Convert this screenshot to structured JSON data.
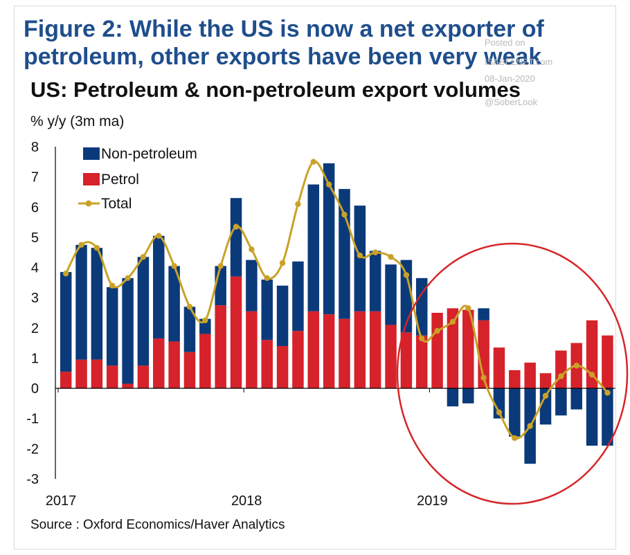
{
  "figure_title": "Figure 2: While the US is now a net exporter of petroleum, other exports have been very weak",
  "watermark": {
    "line1": "Posted on",
    "line2": "ISABELNET.com",
    "line3": "08-Jan-2020",
    "line4": "@SoberLook"
  },
  "source": "Source : Oxford Economics/Haver Analytics",
  "colors": {
    "title": "#1f4e8c",
    "non_petroleum": "#0b3a7a",
    "petrol": "#d6222a",
    "total": "#c9a227",
    "circle": "#d62528"
  },
  "chart_data": {
    "type": "bar",
    "stacked": true,
    "title": "US: Petroleum & non-petroleum export volumes",
    "ylabel": "% y/y (3m ma)",
    "ylim": [
      -3,
      8
    ],
    "yticks": [
      "8",
      "7",
      "6",
      "5",
      "4",
      "3",
      "2",
      "1",
      "0",
      "-1",
      "-2",
      "-3"
    ],
    "x_labels": [
      "2017",
      "2018",
      "2019"
    ],
    "x_label_months": [
      0,
      12,
      24
    ],
    "legend_position": "top-left",
    "annotation": "red circle around 2019 data",
    "months": [
      "Jan-2017",
      "Feb-2017",
      "Mar-2017",
      "Apr-2017",
      "May-2017",
      "Jun-2017",
      "Jul-2017",
      "Aug-2017",
      "Sep-2017",
      "Oct-2017",
      "Nov-2017",
      "Dec-2017",
      "Jan-2018",
      "Feb-2018",
      "Mar-2018",
      "Apr-2018",
      "May-2018",
      "Jun-2018",
      "Jul-2018",
      "Aug-2018",
      "Sep-2018",
      "Oct-2018",
      "Nov-2018",
      "Dec-2018",
      "Jan-2019",
      "Feb-2019",
      "Mar-2019",
      "Apr-2019",
      "May-2019",
      "Jun-2019",
      "Jul-2019",
      "Aug-2019",
      "Sep-2019",
      "Oct-2019",
      "Nov-2019",
      "Dec-2019"
    ],
    "series": [
      {
        "name": "Non-petroleum",
        "kind": "bar",
        "values": [
          3.3,
          3.8,
          3.7,
          2.6,
          3.5,
          3.6,
          3.4,
          2.5,
          1.5,
          0.5,
          1.3,
          2.6,
          1.7,
          2.0,
          2.0,
          2.3,
          4.2,
          5.0,
          4.3,
          3.5,
          2.0,
          2.0,
          2.4,
          1.9,
          0.0,
          -0.6,
          -0.5,
          0.4,
          -1.0,
          -1.6,
          -2.5,
          -1.2,
          -0.9,
          -0.7,
          -1.9,
          -1.9
        ]
      },
      {
        "name": "Petrol",
        "kind": "bar",
        "values": [
          0.55,
          0.95,
          0.95,
          0.75,
          0.15,
          0.75,
          1.65,
          1.55,
          1.2,
          1.8,
          2.75,
          3.7,
          2.55,
          1.6,
          1.4,
          1.9,
          2.55,
          2.45,
          2.3,
          2.55,
          2.55,
          2.1,
          1.85,
          1.75,
          2.5,
          2.65,
          2.6,
          2.25,
          1.35,
          0.6,
          0.85,
          0.5,
          1.25,
          1.5,
          2.25,
          1.75
        ]
      },
      {
        "name": "Total",
        "kind": "line",
        "values": [
          3.8,
          4.75,
          4.65,
          3.4,
          3.65,
          4.35,
          5.05,
          4.05,
          2.7,
          2.25,
          4.05,
          5.35,
          4.6,
          3.65,
          4.15,
          6.1,
          7.5,
          6.75,
          5.75,
          4.4,
          4.5,
          4.35,
          3.75,
          1.65,
          1.9,
          2.2,
          2.65,
          0.35,
          -0.8,
          -1.65,
          -1.25,
          -0.25,
          0.4,
          0.75,
          0.45,
          -0.15
        ]
      }
    ]
  }
}
